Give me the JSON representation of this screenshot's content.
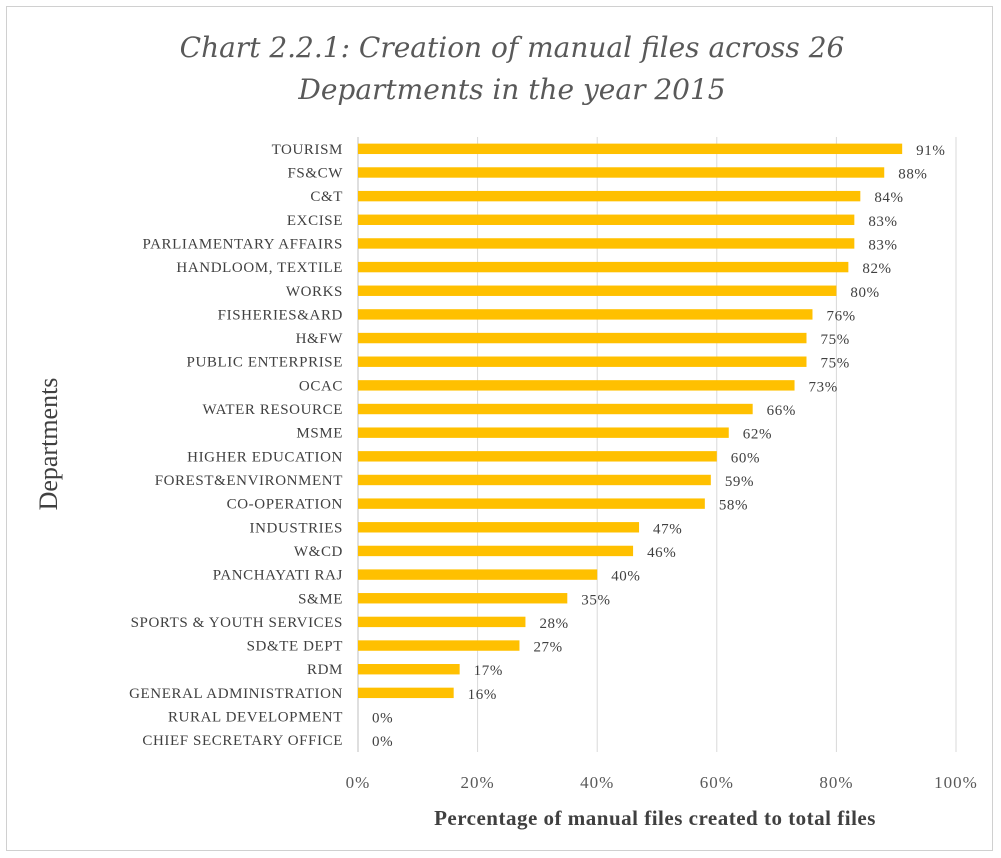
{
  "chart_data": {
    "type": "bar",
    "orientation": "horizontal",
    "title_line1": "Chart 2.2.1: Creation of manual files across 26",
    "title_line2": "Departments in the year 2015",
    "xlabel": "Percentage of manual files created to total files",
    "ylabel": "Departments",
    "xlim": [
      0,
      100
    ],
    "xticks": [
      "0%",
      "20%",
      "40%",
      "60%",
      "80%",
      "100%"
    ],
    "grid": true,
    "bar_color": "#FFC000",
    "categories": [
      "TOURISM",
      "FS&CW",
      "C&T",
      "EXCISE",
      "PARLIAMENTARY AFFAIRS",
      "HANDLOOM, TEXTILE",
      "WORKS",
      "FISHERIES&ARD",
      "H&FW",
      "PUBLIC ENTERPRISE",
      "OCAC",
      "WATER RESOURCE",
      "MSME",
      "HIGHER EDUCATION",
      "FOREST&ENVIRONMENT",
      "CO-OPERATION",
      "INDUSTRIES",
      "W&CD",
      "PANCHAYATI RAJ",
      "S&ME",
      "SPORTS & YOUTH SERVICES",
      "SD&TE DEPT",
      "RDM",
      "GENERAL ADMINISTRATION",
      "RURAL DEVELOPMENT",
      "CHIEF SECRETARY OFFICE"
    ],
    "values": [
      91,
      88,
      84,
      83,
      83,
      82,
      80,
      76,
      75,
      75,
      73,
      66,
      62,
      60,
      59,
      58,
      47,
      46,
      40,
      35,
      28,
      27,
      17,
      16,
      0,
      0
    ],
    "data_labels": [
      "91%",
      "88%",
      "84%",
      "83%",
      "83%",
      "82%",
      "80%",
      "76%",
      "75%",
      "75%",
      "73%",
      "66%",
      "62%",
      "60%",
      "59%",
      "58%",
      "47%",
      "46%",
      "40%",
      "35%",
      "28%",
      "27%",
      "17%",
      "16%",
      "0%",
      "0%"
    ]
  }
}
